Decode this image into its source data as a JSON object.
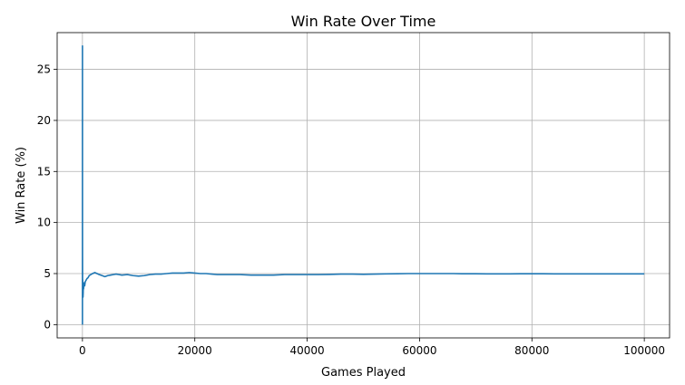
{
  "chart_data": {
    "type": "line",
    "title": "Win Rate Over Time",
    "xlabel": "Games Played",
    "ylabel": "Win Rate (%)",
    "xlim": [
      -4500,
      104500
    ],
    "ylim": [
      -1.3,
      28.6
    ],
    "xticks": [
      0,
      20000,
      40000,
      60000,
      80000,
      100000
    ],
    "xtick_labels": [
      "0",
      "20000",
      "40000",
      "60000",
      "80000",
      "100000"
    ],
    "yticks": [
      0,
      5,
      10,
      15,
      20,
      25
    ],
    "ytick_labels": [
      "0",
      "5",
      "10",
      "15",
      "20",
      "25"
    ],
    "grid": true,
    "line_color": "#1f77b4",
    "series": [
      {
        "x": [
          1,
          3,
          7,
          11,
          15,
          22,
          30,
          45,
          60,
          80,
          100,
          130,
          160,
          200,
          260,
          300,
          400,
          500,
          600,
          800,
          1000,
          1200,
          1500,
          1800,
          2200,
          2600,
          3000,
          3500,
          4000,
          4500,
          5000,
          5500,
          6000,
          6500,
          7000,
          8000,
          9000,
          10000,
          11000,
          12000,
          13000,
          14000,
          15000,
          16000,
          17000,
          18000,
          19000,
          20000,
          21000,
          22000,
          23000,
          24000,
          26000,
          28000,
          30000,
          32000,
          34000,
          36000,
          38000,
          40000,
          42000,
          44000,
          46000,
          48000,
          50000,
          52000,
          54000,
          56000,
          58000,
          60000,
          62000,
          64000,
          66000,
          68000,
          70000,
          72000,
          74000,
          76000,
          78000,
          80000,
          82000,
          84000,
          86000,
          88000,
          90000,
          92000,
          94000,
          96000,
          98000,
          100000
        ],
        "values": [
          0,
          27.3,
          14.3,
          9.1,
          6.7,
          4.5,
          3.3,
          4.4,
          3.3,
          3.8,
          2.7,
          3.1,
          3.8,
          3.5,
          3.9,
          4.1,
          3.8,
          4.2,
          4.3,
          4.5,
          4.6,
          4.8,
          4.9,
          5.0,
          5.1,
          5.0,
          4.9,
          4.8,
          4.7,
          4.8,
          4.85,
          4.9,
          4.95,
          4.9,
          4.85,
          4.9,
          4.8,
          4.75,
          4.8,
          4.9,
          4.95,
          4.95,
          5.0,
          5.05,
          5.05,
          5.05,
          5.1,
          5.05,
          5.0,
          5.0,
          4.95,
          4.9,
          4.9,
          4.9,
          4.85,
          4.85,
          4.85,
          4.9,
          4.9,
          4.9,
          4.9,
          4.92,
          4.95,
          4.95,
          4.93,
          4.95,
          4.97,
          4.98,
          5.0,
          5.0,
          5.0,
          5.0,
          5.0,
          4.98,
          4.98,
          4.97,
          4.97,
          4.97,
          4.98,
          4.98,
          4.98,
          4.97,
          4.97,
          4.97,
          4.97,
          4.97,
          4.97,
          4.97,
          4.97,
          4.97
        ]
      }
    ]
  }
}
